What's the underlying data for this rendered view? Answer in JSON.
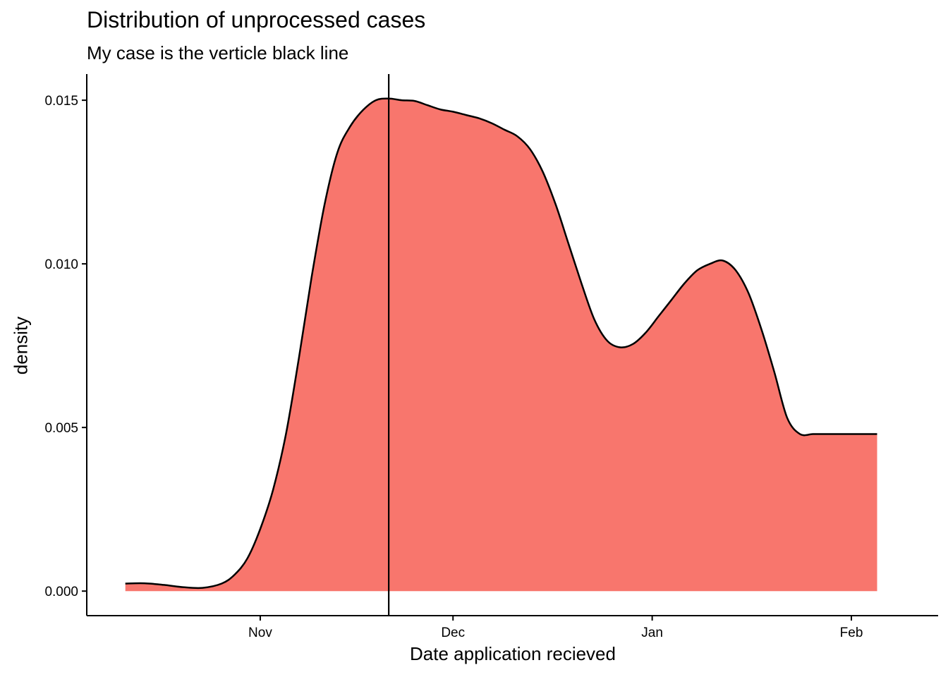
{
  "chart_data": {
    "type": "area",
    "title": "Distribution of unprocessed cases",
    "subtitle": "My case is the verticle black line",
    "xlabel": "Date application recieved",
    "ylabel": "density",
    "x_ticks": [
      {
        "label": "Nov",
        "day": 0
      },
      {
        "label": "Dec",
        "day": 30
      },
      {
        "label": "Jan",
        "day": 61
      },
      {
        "label": "Feb",
        "day": 92
      }
    ],
    "y_ticks": [
      {
        "label": "0.000",
        "value": 0.0
      },
      {
        "label": "0.005",
        "value": 0.005
      },
      {
        "label": "0.010",
        "value": 0.01
      },
      {
        "label": "0.015",
        "value": 0.015
      }
    ],
    "xlim": [
      -27,
      105.5
    ],
    "ylim": [
      -0.00075,
      0.0158
    ],
    "fill_color": "#F8766D",
    "line_color": "#000000",
    "vline_day": 20,
    "series": [
      {
        "name": "density",
        "x": [
          -21,
          -18,
          -15,
          -12,
          -9,
          -6,
          -4,
          -2,
          0,
          2,
          4,
          6,
          8,
          10,
          12,
          14,
          16,
          18,
          20,
          22,
          24,
          26,
          28,
          30,
          32,
          34,
          36,
          38,
          40,
          42,
          44,
          46,
          48,
          50,
          52,
          54,
          56,
          58,
          60,
          62,
          64,
          66,
          68,
          70,
          72,
          74,
          76,
          78,
          80,
          82,
          84,
          86,
          88,
          90,
          92,
          94,
          96
        ],
        "y": [
          0.00023,
          0.00024,
          0.00019,
          0.00012,
          0.0001,
          0.00023,
          0.0005,
          0.001,
          0.0019,
          0.0031,
          0.0048,
          0.0071,
          0.0096,
          0.0118,
          0.0134,
          0.0142,
          0.0147,
          0.015,
          0.01505,
          0.015,
          0.01498,
          0.01485,
          0.01472,
          0.01465,
          0.01455,
          0.01445,
          0.0143,
          0.0141,
          0.0139,
          0.0135,
          0.0128,
          0.0118,
          0.0106,
          0.0094,
          0.0083,
          0.00765,
          0.00745,
          0.00755,
          0.0079,
          0.0084,
          0.0089,
          0.0094,
          0.0098,
          0.01,
          0.0101,
          0.0098,
          0.0091,
          0.008,
          0.0067,
          0.0053,
          0.0048,
          0.0048,
          0.0048,
          0.0048,
          0.0048,
          0.0048,
          0.0048
        ]
      }
    ]
  }
}
